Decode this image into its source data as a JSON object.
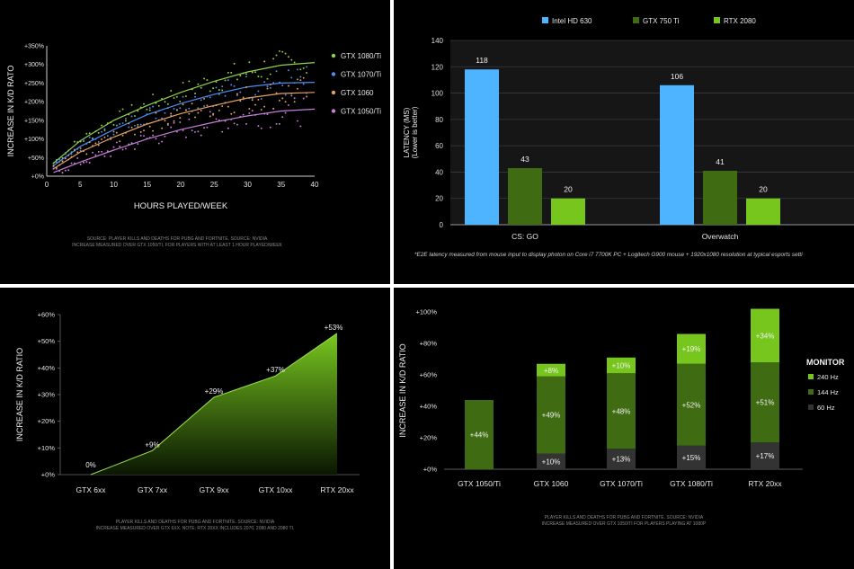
{
  "chart_data": [
    {
      "type": "scatter",
      "ylabel": "INCREASE IN K/D RATO",
      "xlabel": "HOURS PLAYED/WEEK",
      "xlim": [
        0,
        40
      ],
      "ylim": [
        0,
        350
      ],
      "x_ticks": [
        "0",
        "5",
        "10",
        "15",
        "20",
        "25",
        "30",
        "35",
        "40"
      ],
      "y_ticks": [
        "+0%",
        "+50%",
        "+100%",
        "+150%",
        "+200%",
        "+250%",
        "+300%",
        "+350%"
      ],
      "legend_position": "right",
      "series": [
        {
          "name": "GTX 1080/Ti",
          "color": "#8fd24a",
          "trend": [
            [
              1,
              35
            ],
            [
              5,
              95
            ],
            [
              10,
              150
            ],
            [
              15,
              190
            ],
            [
              20,
              225
            ],
            [
              25,
              255
            ],
            [
              30,
              280
            ],
            [
              35,
              298
            ],
            [
              40,
              305
            ]
          ]
        },
        {
          "name": "GTX 1070/Ti",
          "color": "#4f8df0",
          "trend": [
            [
              1,
              28
            ],
            [
              5,
              80
            ],
            [
              10,
              125
            ],
            [
              15,
              165
            ],
            [
              20,
              195
            ],
            [
              25,
              220
            ],
            [
              30,
              240
            ],
            [
              35,
              250
            ],
            [
              40,
              252
            ]
          ]
        },
        {
          "name": "GTX 1060",
          "color": "#e6a061",
          "trend": [
            [
              1,
              20
            ],
            [
              5,
              65
            ],
            [
              10,
              105
            ],
            [
              15,
              140
            ],
            [
              20,
              168
            ],
            [
              25,
              190
            ],
            [
              30,
              210
            ],
            [
              35,
              222
            ],
            [
              40,
              225
            ]
          ]
        },
        {
          "name": "GTX 1050/Ti",
          "color": "#c77fd8",
          "trend": [
            [
              1,
              10
            ],
            [
              5,
              38
            ],
            [
              10,
              70
            ],
            [
              15,
              100
            ],
            [
              20,
              125
            ],
            [
              25,
              145
            ],
            [
              30,
              162
            ],
            [
              35,
              175
            ],
            [
              40,
              180
            ]
          ]
        }
      ],
      "source_lines": [
        "SOURCE: PLAYER KILLS AND DEATHS FOR PUBG AND FORTNITE. SOURCE: NVIDIA",
        "INCREASE MEASURED OVER GTX 1050/TI, FOR PLAYERS WITH AT LEAST 1 HOUR PLAYED/WEEK"
      ]
    },
    {
      "type": "bar",
      "ylabel": "LATENCY (MS)",
      "ylabel2": "(Lower is better)",
      "ylim": [
        0,
        140
      ],
      "y_ticks": [
        "0",
        "20",
        "40",
        "60",
        "80",
        "100",
        "120",
        "140"
      ],
      "categories": [
        "CS: GO",
        "Overwatch"
      ],
      "legend_position": "top",
      "series": [
        {
          "name": "Intel HD 630",
          "color": "#4fb4ff",
          "values": [
            118,
            106
          ]
        },
        {
          "name": "GTX 750 Ti",
          "color": "#3f6b12",
          "values": [
            43,
            41
          ]
        },
        {
          "name": "RTX 2080",
          "color": "#76c61e",
          "values": [
            20,
            20
          ]
        }
      ],
      "value_labels": [
        [
          "118",
          "106"
        ],
        [
          "43",
          "41"
        ],
        [
          "20",
          "20"
        ]
      ],
      "footnote": "*E2E latency measured from mouse input to display photon on Core i7 7700K PC + Logitech G900 mouse + 1920x1080 resolution at typical esports setti"
    },
    {
      "type": "area",
      "ylabel": "INCREASE IN K/D RATIO",
      "ylim": [
        0,
        60
      ],
      "y_ticks": [
        "+0%",
        "+10%",
        "+20%",
        "+30%",
        "+40%",
        "+50%",
        "+60%"
      ],
      "categories": [
        "GTX 6xx",
        "GTX 7xx",
        "GTX 9xx",
        "GTX 10xx",
        "RTX 20xx"
      ],
      "values": [
        0,
        9,
        29,
        37,
        53
      ],
      "value_labels": [
        "0%",
        "+9%",
        "+29%",
        "+37%",
        "+53%"
      ],
      "source_lines": [
        "PLAYER KILLS AND DEATHS FOR PUBG AND FORTNITE. SOURCE: NVIDIA",
        "INCREASE MEASURED OVER GTX 6XX. NOTE: RTX 20XX INCLUDES 2070, 2080 AND 2080 TI."
      ]
    },
    {
      "type": "bar",
      "stacked": true,
      "ylabel": "INCREASE IN K/D RATIO",
      "ylim": [
        0,
        100
      ],
      "y_ticks": [
        "+0%",
        "+20%",
        "+40%",
        "+60%",
        "+80%",
        "+100%"
      ],
      "categories": [
        "GTX 1050/Ti",
        "GTX 1060",
        "GTX 1070/Ti",
        "GTX 1080/Ti",
        "RTX 20xx"
      ],
      "legend_title": "MONITOR",
      "legend_position": "right",
      "series": [
        {
          "name": "60 Hz",
          "color": "#333333",
          "values": [
            0,
            10,
            13,
            15,
            17
          ],
          "labels": [
            "",
            "+10%",
            "+13%",
            "+15%",
            "+17%"
          ]
        },
        {
          "name": "144 Hz",
          "color": "#3f6b12",
          "values": [
            44,
            49,
            48,
            52,
            51
          ],
          "labels": [
            "+44%",
            "+49%",
            "+48%",
            "+52%",
            "+51%"
          ]
        },
        {
          "name": "240 Hz",
          "color": "#76c61e",
          "values": [
            0,
            8,
            10,
            19,
            34
          ],
          "labels": [
            "",
            "+8%",
            "+10%",
            "+19%",
            "+34%"
          ]
        }
      ],
      "source_lines": [
        "PLAYER KILLS AND DEATHS FOR PUBG AND FORTNITE. SOURCE: NVIDIA",
        "INCREASE MEASURED OVER GTX 1050/TI FOR PLAYERS PLAYING AT 1080P"
      ]
    }
  ]
}
